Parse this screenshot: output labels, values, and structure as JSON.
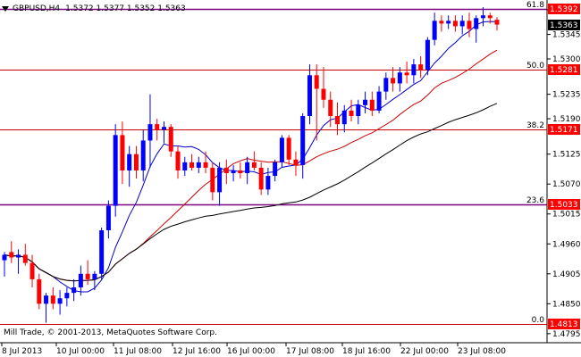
{
  "header": {
    "symbol_timeframe": "GBPUSD,H4",
    "ohlc": "1.5372 1.5377 1.5352 1.5363"
  },
  "footer": {
    "copyright": "Mill Trade, © 2001-2013, MetaQuotes Software Corp."
  },
  "colors": {
    "background": "#ffffff",
    "bull_candle": "#0000ff",
    "bear_candle": "#ff0000",
    "fib_line": "#cc0000",
    "level_line_purple": "#800080",
    "ma_fast": "#0000cc",
    "ma_slow": "#cc0000",
    "ma_long": "#000000",
    "price_box": "#ff0000",
    "current_price_box": "#000000"
  },
  "chart_data": {
    "type": "candlestick",
    "symbol": "GBPUSD",
    "timeframe": "H4",
    "y_axis_ticks": [
      "1.5390",
      "1.5345",
      "1.5300",
      "1.5235",
      "1.5190",
      "1.5125",
      "1.5070",
      "1.5015",
      "1.4960",
      "1.4905",
      "1.4850",
      "1.4795"
    ],
    "ylim": [
      1.478,
      1.5405
    ],
    "x_axis_ticks": [
      "8 Jul 2013",
      "10 Jul 00:00",
      "11 Jul 08:00",
      "12 Jul 16:00",
      "16 Jul 00:00",
      "17 Jul 08:00",
      "18 Jul 16:00",
      "22 Jul 00:00",
      "23 Jul 08:00"
    ],
    "fibonacci_levels": [
      {
        "label": "61.8",
        "price": "1.5392",
        "value": 1.5392
      },
      {
        "label": "50.0",
        "price": "1.5281",
        "value": 1.5281
      },
      {
        "label": "38.2",
        "price": "1.5171",
        "value": 1.5171
      },
      {
        "label": "23.6",
        "price": "1.5033",
        "value": 1.5033
      },
      {
        "label": "0.0",
        "price": "1.4813",
        "value": 1.4813
      }
    ],
    "current_price": {
      "label": "1.5363",
      "value": 1.5363
    },
    "candles": [
      {
        "o": 1.493,
        "h": 1.4945,
        "l": 1.49,
        "c": 1.494
      },
      {
        "o": 1.4945,
        "h": 1.4965,
        "l": 1.4925,
        "c": 1.4935
      },
      {
        "o": 1.4935,
        "h": 1.495,
        "l": 1.4905,
        "c": 1.494
      },
      {
        "o": 1.494,
        "h": 1.496,
        "l": 1.492,
        "c": 1.4925
      },
      {
        "o": 1.4925,
        "h": 1.494,
        "l": 1.488,
        "c": 1.4895
      },
      {
        "o": 1.4895,
        "h": 1.4905,
        "l": 1.484,
        "c": 1.485
      },
      {
        "o": 1.485,
        "h": 1.487,
        "l": 1.4815,
        "c": 1.4865
      },
      {
        "o": 1.4865,
        "h": 1.488,
        "l": 1.484,
        "c": 1.485
      },
      {
        "o": 1.485,
        "h": 1.4875,
        "l": 1.483,
        "c": 1.486
      },
      {
        "o": 1.486,
        "h": 1.488,
        "l": 1.4845,
        "c": 1.487
      },
      {
        "o": 1.487,
        "h": 1.4895,
        "l": 1.4855,
        "c": 1.488
      },
      {
        "o": 1.488,
        "h": 1.492,
        "l": 1.4865,
        "c": 1.4905
      },
      {
        "o": 1.4905,
        "h": 1.493,
        "l": 1.4885,
        "c": 1.4895
      },
      {
        "o": 1.4895,
        "h": 1.491,
        "l": 1.4875,
        "c": 1.4905
      },
      {
        "o": 1.4905,
        "h": 1.499,
        "l": 1.4895,
        "c": 1.4985
      },
      {
        "o": 1.4985,
        "h": 1.504,
        "l": 1.497,
        "c": 1.503
      },
      {
        "o": 1.503,
        "h": 1.518,
        "l": 1.501,
        "c": 1.516
      },
      {
        "o": 1.516,
        "h": 1.5185,
        "l": 1.507,
        "c": 1.5095
      },
      {
        "o": 1.5095,
        "h": 1.514,
        "l": 1.5065,
        "c": 1.5125
      },
      {
        "o": 1.5125,
        "h": 1.514,
        "l": 1.508,
        "c": 1.5095
      },
      {
        "o": 1.5095,
        "h": 1.517,
        "l": 1.5075,
        "c": 1.515
      },
      {
        "o": 1.515,
        "h": 1.5235,
        "l": 1.51,
        "c": 1.518
      },
      {
        "o": 1.518,
        "h": 1.519,
        "l": 1.515,
        "c": 1.517
      },
      {
        "o": 1.517,
        "h": 1.5185,
        "l": 1.5145,
        "c": 1.5175
      },
      {
        "o": 1.5175,
        "h": 1.518,
        "l": 1.512,
        "c": 1.513
      },
      {
        "o": 1.513,
        "h": 1.514,
        "l": 1.508,
        "c": 1.5095
      },
      {
        "o": 1.5095,
        "h": 1.512,
        "l": 1.5085,
        "c": 1.511
      },
      {
        "o": 1.511,
        "h": 1.5125,
        "l": 1.5095,
        "c": 1.51
      },
      {
        "o": 1.51,
        "h": 1.512,
        "l": 1.509,
        "c": 1.511
      },
      {
        "o": 1.511,
        "h": 1.513,
        "l": 1.509,
        "c": 1.51
      },
      {
        "o": 1.51,
        "h": 1.511,
        "l": 1.504,
        "c": 1.5055
      },
      {
        "o": 1.5055,
        "h": 1.511,
        "l": 1.503,
        "c": 1.51
      },
      {
        "o": 1.51,
        "h": 1.5115,
        "l": 1.507,
        "c": 1.509
      },
      {
        "o": 1.509,
        "h": 1.5105,
        "l": 1.5075,
        "c": 1.5095
      },
      {
        "o": 1.5095,
        "h": 1.511,
        "l": 1.508,
        "c": 1.509
      },
      {
        "o": 1.509,
        "h": 1.512,
        "l": 1.507,
        "c": 1.511
      },
      {
        "o": 1.511,
        "h": 1.513,
        "l": 1.5095,
        "c": 1.51
      },
      {
        "o": 1.51,
        "h": 1.511,
        "l": 1.505,
        "c": 1.506
      },
      {
        "o": 1.506,
        "h": 1.51,
        "l": 1.505,
        "c": 1.5085
      },
      {
        "o": 1.5085,
        "h": 1.5115,
        "l": 1.5075,
        "c": 1.511
      },
      {
        "o": 1.511,
        "h": 1.516,
        "l": 1.51,
        "c": 1.5155
      },
      {
        "o": 1.5155,
        "h": 1.516,
        "l": 1.5105,
        "c": 1.5115
      },
      {
        "o": 1.5115,
        "h": 1.513,
        "l": 1.5085,
        "c": 1.5105
      },
      {
        "o": 1.5105,
        "h": 1.52,
        "l": 1.508,
        "c": 1.5195
      },
      {
        "o": 1.5195,
        "h": 1.529,
        "l": 1.518,
        "c": 1.527
      },
      {
        "o": 1.527,
        "h": 1.529,
        "l": 1.515,
        "c": 1.5245
      },
      {
        "o": 1.5245,
        "h": 1.5285,
        "l": 1.521,
        "c": 1.5225
      },
      {
        "o": 1.5225,
        "h": 1.524,
        "l": 1.5175,
        "c": 1.5195
      },
      {
        "o": 1.5195,
        "h": 1.522,
        "l": 1.516,
        "c": 1.518
      },
      {
        "o": 1.518,
        "h": 1.5215,
        "l": 1.5165,
        "c": 1.5205
      },
      {
        "o": 1.5205,
        "h": 1.5225,
        "l": 1.5185,
        "c": 1.5195
      },
      {
        "o": 1.5195,
        "h": 1.5225,
        "l": 1.518,
        "c": 1.5215
      },
      {
        "o": 1.5215,
        "h": 1.524,
        "l": 1.52,
        "c": 1.5225
      },
      {
        "o": 1.5225,
        "h": 1.524,
        "l": 1.5195,
        "c": 1.5205
      },
      {
        "o": 1.5205,
        "h": 1.525,
        "l": 1.52,
        "c": 1.524
      },
      {
        "o": 1.524,
        "h": 1.5275,
        "l": 1.5225,
        "c": 1.5265
      },
      {
        "o": 1.5265,
        "h": 1.5285,
        "l": 1.524,
        "c": 1.5255
      },
      {
        "o": 1.5255,
        "h": 1.5285,
        "l": 1.524,
        "c": 1.5275
      },
      {
        "o": 1.5275,
        "h": 1.5295,
        "l": 1.5255,
        "c": 1.527
      },
      {
        "o": 1.527,
        "h": 1.53,
        "l": 1.5255,
        "c": 1.529
      },
      {
        "o": 1.529,
        "h": 1.5305,
        "l": 1.5265,
        "c": 1.528
      },
      {
        "o": 1.528,
        "h": 1.534,
        "l": 1.527,
        "c": 1.5335
      },
      {
        "o": 1.5335,
        "h": 1.5385,
        "l": 1.5325,
        "c": 1.537
      },
      {
        "o": 1.537,
        "h": 1.538,
        "l": 1.535,
        "c": 1.5365
      },
      {
        "o": 1.5365,
        "h": 1.538,
        "l": 1.5355,
        "c": 1.537
      },
      {
        "o": 1.537,
        "h": 1.538,
        "l": 1.535,
        "c": 1.536
      },
      {
        "o": 1.536,
        "h": 1.538,
        "l": 1.5345,
        "c": 1.537
      },
      {
        "o": 1.537,
        "h": 1.5385,
        "l": 1.534,
        "c": 1.5355
      },
      {
        "o": 1.5355,
        "h": 1.538,
        "l": 1.533,
        "c": 1.5375
      },
      {
        "o": 1.5375,
        "h": 1.5395,
        "l": 1.536,
        "c": 1.538
      },
      {
        "o": 1.538,
        "h": 1.5385,
        "l": 1.5365,
        "c": 1.5375
      },
      {
        "o": 1.5372,
        "h": 1.5377,
        "l": 1.5352,
        "c": 1.5363
      }
    ]
  }
}
